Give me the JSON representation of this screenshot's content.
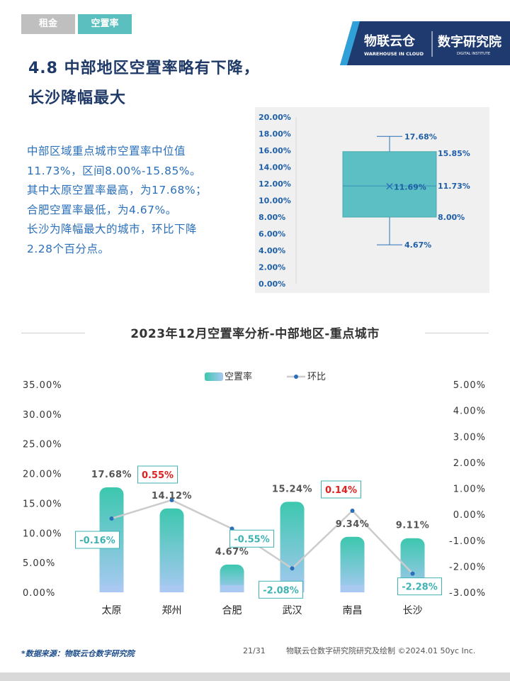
{
  "header": {
    "tab_rent": "租金",
    "tab_vacancy": "空置率",
    "logo_text_cn": "物联云仓",
    "logo_text_en": "WAREHOUSE IN CLOUD",
    "institute_cn": "数字研究院",
    "institute_en": "DIGITAL INSTITUTE"
  },
  "page": {
    "title_line1": "4.8 中部地区空置率略有下降，",
    "title_line2": "长沙降幅最大",
    "summary": [
      "中部区域重点城市空置率中位值",
      "11.73%，区间8.00%-15.85%。",
      "其中太原空置率最高，为17.68%；",
      "合肥空置率最低，为4.67%。",
      "长沙为降幅最大的城市，环比下降",
      "2.28个百分点。"
    ],
    "main_chart_title": "2023年12月空置率分析-中部地区-重点城市"
  },
  "chart_data": [
    {
      "type": "box",
      "y_ticks": [
        "20.00%",
        "18.00%",
        "16.00%",
        "14.00%",
        "12.00%",
        "10.00%",
        "8.00%",
        "6.00%",
        "4.00%",
        "2.00%",
        "0.00%"
      ],
      "ylim": [
        0,
        20
      ],
      "max": 17.68,
      "q3": 15.85,
      "median": 11.73,
      "mean": 11.69,
      "q1": 8.0,
      "min": 4.67,
      "labels": {
        "max": "17.68%",
        "q3": "15.85%",
        "median": "11.73%",
        "mean": "11.69%",
        "q1": "8.00%",
        "min": "4.67%"
      },
      "colors": {
        "box": "#5bbfc4",
        "line": "#2a6fba",
        "label": "#1f5fa8"
      }
    },
    {
      "type": "bar+line",
      "legend": [
        "空置率",
        "环比"
      ],
      "legend_position": "top-center",
      "categories": [
        "太原",
        "郑州",
        "合肥",
        "武汉",
        "南昌",
        "长沙"
      ],
      "series": [
        {
          "name": "空置率",
          "type": "bar",
          "axis": "left",
          "values": [
            17.68,
            14.12,
            4.67,
            15.24,
            9.34,
            9.11
          ],
          "labels": [
            "17.68%",
            "14.12%",
            "4.67%",
            "15.24%",
            "9.34%",
            "9.11%"
          ]
        },
        {
          "name": "环比",
          "type": "line",
          "axis": "right",
          "values": [
            -0.16,
            0.55,
            -0.55,
            -2.08,
            0.14,
            -2.28
          ],
          "labels": [
            "-0.16%",
            "0.55%",
            "-0.55%",
            "-2.08%",
            "0.14%",
            "-2.28%"
          ]
        }
      ],
      "y_left": {
        "min": 0,
        "max": 35,
        "ticks": [
          "35.00%",
          "30.00%",
          "25.00%",
          "20.00%",
          "15.00%",
          "10.00%",
          "5.00%",
          "0.00%"
        ]
      },
      "y_right": {
        "min": -3,
        "max": 5,
        "ticks": [
          "5.00%",
          "4.00%",
          "3.00%",
          "2.00%",
          "1.00%",
          "0.00%",
          "-1.00%",
          "-2.00%",
          "-3.00%"
        ]
      },
      "colors": {
        "bar_top": "#3cc7ae",
        "bar_bottom": "#a9c9f2",
        "line": "#cccccc",
        "marker": "#2a6fba",
        "positive_label": "#e02020",
        "negative_label": "#3fb3b3",
        "label_border_pos": "#3fb3b3",
        "label_border_neg": "#3fb3b3"
      }
    }
  ],
  "footer": {
    "source": "*数据来源：物联云仓数字研究院",
    "page_number": "21/31",
    "credit": "物联云仓数字研究院研究及绘制   ©2024.01 50yc Inc."
  }
}
